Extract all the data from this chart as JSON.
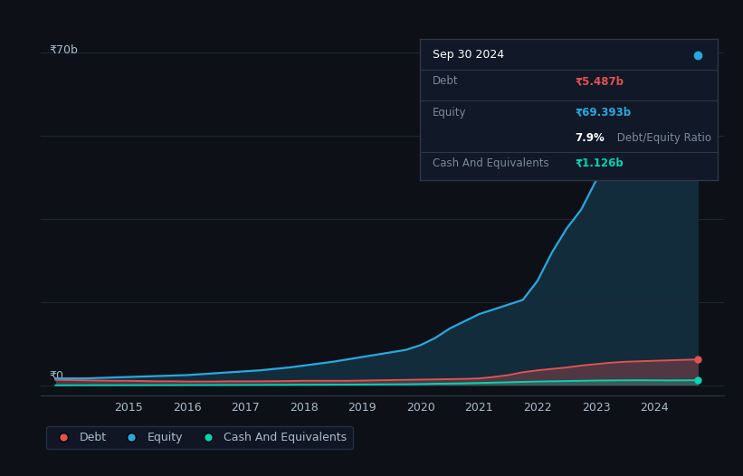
{
  "background_color": "#0d1117",
  "plot_bg_color": "#0d1117",
  "grid_color": "#1e2838",
  "years_equity": [
    2013.75,
    2014.0,
    2014.25,
    2014.5,
    2014.75,
    2015.0,
    2015.25,
    2015.5,
    2015.75,
    2016.0,
    2016.25,
    2016.5,
    2016.75,
    2017.0,
    2017.25,
    2017.5,
    2017.75,
    2018.0,
    2018.25,
    2018.5,
    2018.75,
    2019.0,
    2019.25,
    2019.5,
    2019.75,
    2020.0,
    2020.25,
    2020.5,
    2020.75,
    2021.0,
    2021.25,
    2021.5,
    2021.75,
    2022.0,
    2022.25,
    2022.5,
    2022.75,
    2023.0,
    2023.25,
    2023.5,
    2023.75,
    2024.0,
    2024.25,
    2024.5,
    2024.75
  ],
  "equity": [
    1.5,
    1.5,
    1.5,
    1.6,
    1.7,
    1.8,
    1.9,
    2.0,
    2.1,
    2.2,
    2.4,
    2.6,
    2.8,
    3.0,
    3.2,
    3.5,
    3.8,
    4.2,
    4.6,
    5.0,
    5.5,
    6.0,
    6.5,
    7.0,
    7.5,
    8.5,
    10.0,
    12.0,
    13.5,
    15.0,
    16.0,
    17.0,
    18.0,
    22.0,
    28.0,
    33.0,
    37.0,
    43.0,
    50.0,
    53.0,
    56.0,
    59.0,
    62.0,
    65.0,
    69.393
  ],
  "years_debt": [
    2013.75,
    2014.0,
    2014.25,
    2014.5,
    2014.75,
    2015.0,
    2015.25,
    2015.5,
    2015.75,
    2016.0,
    2016.25,
    2016.5,
    2016.75,
    2017.0,
    2017.25,
    2017.5,
    2017.75,
    2018.0,
    2018.25,
    2018.5,
    2018.75,
    2019.0,
    2019.25,
    2019.5,
    2019.75,
    2020.0,
    2020.25,
    2020.5,
    2020.75,
    2021.0,
    2021.25,
    2021.5,
    2021.75,
    2022.0,
    2022.25,
    2022.5,
    2022.75,
    2023.0,
    2023.25,
    2023.5,
    2023.75,
    2024.0,
    2024.25,
    2024.5,
    2024.75
  ],
  "debt": [
    1.2,
    1.15,
    1.1,
    1.05,
    1.0,
    1.0,
    0.95,
    0.9,
    0.9,
    0.85,
    0.85,
    0.85,
    0.9,
    0.9,
    0.9,
    0.92,
    0.95,
    1.0,
    1.0,
    1.0,
    1.0,
    1.05,
    1.1,
    1.15,
    1.2,
    1.25,
    1.3,
    1.35,
    1.4,
    1.5,
    1.8,
    2.2,
    2.8,
    3.2,
    3.5,
    3.8,
    4.2,
    4.5,
    4.8,
    5.0,
    5.1,
    5.2,
    5.3,
    5.4,
    5.487
  ],
  "years_cash": [
    2013.75,
    2014.0,
    2014.25,
    2014.5,
    2014.75,
    2015.0,
    2015.25,
    2015.5,
    2015.75,
    2016.0,
    2016.25,
    2016.5,
    2016.75,
    2017.0,
    2017.25,
    2017.5,
    2017.75,
    2018.0,
    2018.25,
    2018.5,
    2018.75,
    2019.0,
    2019.25,
    2019.5,
    2019.75,
    2020.0,
    2020.25,
    2020.5,
    2020.75,
    2021.0,
    2021.25,
    2021.5,
    2021.75,
    2022.0,
    2022.25,
    2022.5,
    2022.75,
    2023.0,
    2023.25,
    2023.5,
    2023.75,
    2024.0,
    2024.25,
    2024.5,
    2024.75
  ],
  "cash": [
    0.05,
    0.06,
    0.06,
    0.07,
    0.07,
    0.08,
    0.08,
    0.09,
    0.09,
    0.1,
    0.1,
    0.11,
    0.12,
    0.13,
    0.14,
    0.15,
    0.16,
    0.17,
    0.18,
    0.19,
    0.2,
    0.22,
    0.24,
    0.26,
    0.28,
    0.32,
    0.38,
    0.42,
    0.48,
    0.55,
    0.62,
    0.7,
    0.78,
    0.85,
    0.9,
    0.95,
    1.0,
    1.05,
    1.08,
    1.1,
    1.12,
    1.1,
    1.08,
    1.1,
    1.126
  ],
  "equity_color": "#29a8e0",
  "debt_color": "#e05252",
  "cash_color": "#00d4b4",
  "xlim": [
    2013.5,
    2025.2
  ],
  "ylim": [
    -2,
    74
  ],
  "xtick_labels": [
    "2015",
    "2016",
    "2017",
    "2018",
    "2019",
    "2020",
    "2021",
    "2022",
    "2023",
    "2024"
  ],
  "xtick_positions": [
    2015,
    2016,
    2017,
    2018,
    2019,
    2020,
    2021,
    2022,
    2023,
    2024
  ],
  "legend_items": [
    "Debt",
    "Equity",
    "Cash And Equivalents"
  ],
  "legend_colors": [
    "#e05252",
    "#29a8e0",
    "#00d4b4"
  ],
  "tooltip_title": "Sep 30 2024",
  "tooltip_debt_label": "Debt",
  "tooltip_debt_value": "₹5.487b",
  "tooltip_equity_label": "Equity",
  "tooltip_equity_value": "₹69.393b",
  "tooltip_ratio_value": "7.9%",
  "tooltip_ratio_label": " Debt/Equity Ratio",
  "tooltip_cash_label": "Cash And Equivalents",
  "tooltip_cash_value": "₹1.126b",
  "text_color": "#aabbcc",
  "text_color_dim": "#7a8a99",
  "label_fontsize": 9,
  "tick_fontsize": 9,
  "legend_fontsize": 9,
  "tooltip_fontsize": 8.5
}
